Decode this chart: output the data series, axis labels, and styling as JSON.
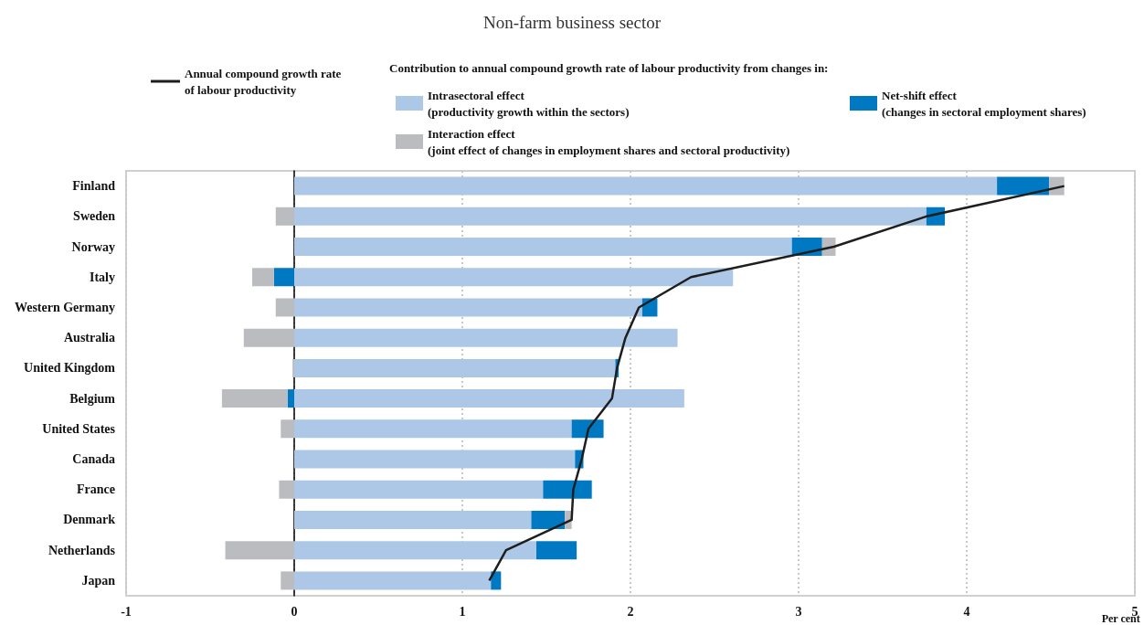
{
  "chart_data": {
    "type": "bar",
    "orientation": "horizontal",
    "stacked": true,
    "title": "Non-farm business sector",
    "xlabel": "Per cent",
    "legend_title": "Contribution to annual compound growth rate of labour productivity from changes in:",
    "categories": [
      "Finland",
      "Sweden",
      "Norway",
      "Italy",
      "Western Germany",
      "Australia",
      "United Kingdom",
      "Belgium",
      "United States",
      "Canada",
      "France",
      "Denmark",
      "Netherlands",
      "Japan"
    ],
    "series": [
      {
        "name": "Intrasectoral effect\n(productivity growth within the sectors)",
        "color": "#adc8e6",
        "values": [
          4.18,
          3.76,
          2.96,
          2.61,
          2.07,
          2.28,
          1.91,
          2.32,
          1.65,
          1.67,
          1.48,
          1.41,
          1.44,
          1.17
        ]
      },
      {
        "name": "Net-shift effect\n(changes in sectoral employment shares)",
        "color": "#0078c2",
        "values": [
          0.31,
          0.11,
          0.18,
          -0.12,
          0.09,
          null,
          0.02,
          -0.04,
          0.19,
          0.05,
          0.29,
          0.2,
          0.24,
          0.06
        ]
      },
      {
        "name": "Interaction effect\n(joint effect of changes in employment shares and sectoral productivity)",
        "color": "#bbbcc0",
        "values": [
          0.09,
          -0.11,
          0.08,
          -0.13,
          -0.11,
          -0.3,
          -0.01,
          -0.39,
          -0.08,
          null,
          -0.09,
          0.04,
          -0.41,
          -0.08
        ]
      },
      {
        "name": "Annual compound growth rate\nof labour productivity",
        "type": "line",
        "color": "#1e1e1e",
        "values": [
          4.58,
          3.76,
          3.21,
          2.36,
          2.05,
          1.97,
          1.92,
          1.89,
          1.75,
          1.71,
          1.66,
          1.65,
          1.26,
          1.16
        ]
      }
    ],
    "xlim": [
      -1,
      5
    ],
    "xticks": [
      -1,
      0,
      1,
      2,
      3,
      4,
      5
    ],
    "grid": "x",
    "legend": "top",
    "marker": "none"
  }
}
